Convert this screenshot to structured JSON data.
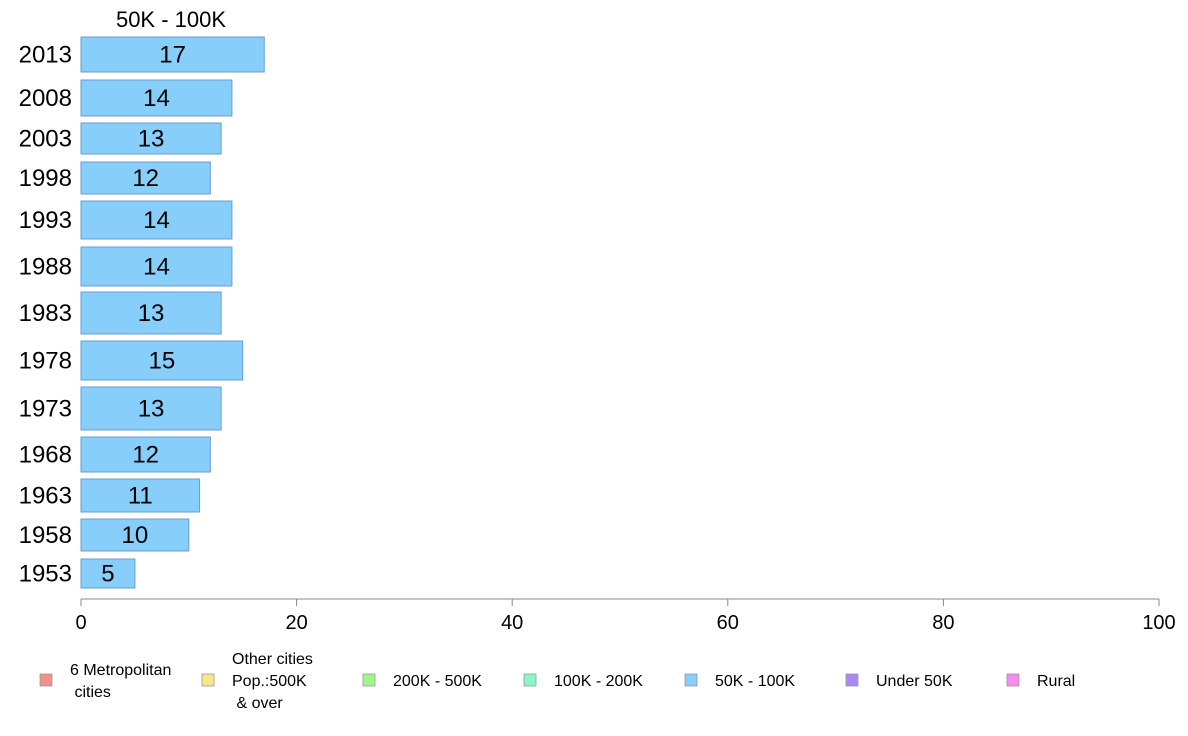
{
  "chart_data": {
    "type": "bar",
    "orientation": "horizontal",
    "title": "50K - 100K",
    "categories": [
      "2013",
      "2008",
      "2003",
      "1998",
      "1993",
      "1988",
      "1983",
      "1978",
      "1973",
      "1968",
      "1963",
      "1958",
      "1953"
    ],
    "series": [
      {
        "name": "50K - 100K",
        "color": "#87cefa",
        "values": [
          17,
          14,
          13,
          12,
          14,
          14,
          13,
          15,
          13,
          12,
          11,
          10,
          5
        ]
      }
    ],
    "xlim": [
      0,
      100
    ],
    "xticks": [
      0,
      20,
      40,
      60,
      80,
      100
    ],
    "xlabel": "",
    "ylabel": "",
    "grid": false,
    "bar_color": "#87cefa",
    "bar_edge_color": "#6a9ccf",
    "legend_position": "bottom",
    "legend": [
      {
        "label": [
          "6 Metropolitan",
          " cities"
        ],
        "color": "#f4908a"
      },
      {
        "label": [
          "Other cities",
          "Pop.:500K",
          " & over"
        ],
        "color": "#f7e58a"
      },
      {
        "label": [
          "200K - 500K"
        ],
        "color": "#a3f58a"
      },
      {
        "label": [
          "100K - 200K"
        ],
        "color": "#8af5c8"
      },
      {
        "label": [
          "50K - 100K"
        ],
        "color": "#87cefa"
      },
      {
        "label": [
          "Under 50K"
        ],
        "color": "#a98af5"
      },
      {
        "label": [
          "Rural"
        ],
        "color": "#f58af0"
      }
    ]
  }
}
